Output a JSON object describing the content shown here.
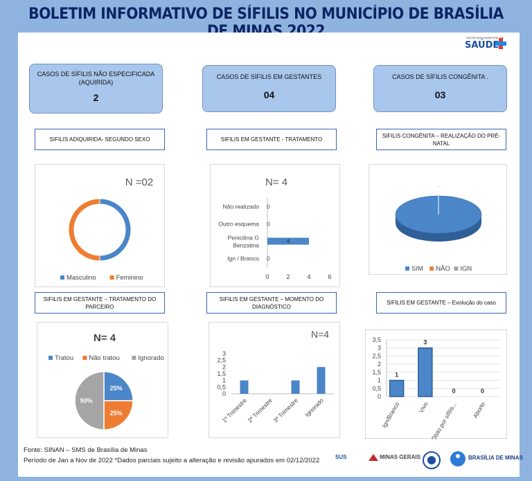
{
  "header": {
    "title": "BOLETIM INFORMATIVO DE SÍFILIS NO MUNICÍPIO DE BRASÍLIA DE MINAS 2022"
  },
  "logo": {
    "small": "SECRETARIA MUNICIPAL DE",
    "main": "SAÚDE"
  },
  "kpis": [
    {
      "label": "CASOS DE SÍFILIS NÃO ESPECIFICADA (AQUIRIDA)",
      "value": "2"
    },
    {
      "label": "CASOS DE SÍFILIS EM GESTANTES",
      "value": "04"
    },
    {
      "label": "CASOS DE SÍFILIS CONGÊNITA   .",
      "value": "03"
    }
  ],
  "sections": [
    "SIFILIS ADIQUIRIDA- SEGUNDO SEXO",
    "SIFILIS EM GESTANTE - TRATAMENTO",
    "SIFILIS CONGÊNITA – REALIZAÇÃO DO PRÉ-NATAL",
    "SIFILIS EM GESTANTE – TRATAMENTO DO PARCEIRO",
    "SIFILIS EM GESTANTE – MOMENTO DO DIAGNÓSTICO",
    "SIFILIS EM GESTANTE – Evolução do caso"
  ],
  "chart_data": [
    {
      "type": "pie",
      "subtype": "donut",
      "annotation": "N =02",
      "categories": [
        "Masculino",
        "Feminino"
      ],
      "values": [
        1,
        1
      ],
      "colors": [
        "#4a86c8",
        "#ee7d31"
      ],
      "legend": "bottom"
    },
    {
      "type": "bar",
      "orientation": "horizontal",
      "annotation": "N= 4",
      "categories": [
        "Não realizado",
        "Outro esquema",
        "Penicilina G Benzatina",
        "Ign / Branco"
      ],
      "values": [
        0,
        0,
        4,
        0
      ],
      "xlim": [
        0,
        6
      ],
      "xticks": [
        "0",
        "2",
        "4",
        "6"
      ],
      "colors": [
        "#4a86c8"
      ]
    },
    {
      "type": "pie",
      "subtype": "3d",
      "annotation": ".",
      "categories": [
        "SIM",
        "NÃO",
        "IGN"
      ],
      "values": [
        3,
        0,
        0
      ],
      "colors": [
        "#4a86c8",
        "#ee7d31",
        "#a5a5a5"
      ],
      "legend": "bottom"
    },
    {
      "type": "pie",
      "annotation": "N= 4",
      "categories": [
        "Tratou",
        "Não tratou",
        "Ignorado"
      ],
      "values": [
        25,
        25,
        50
      ],
      "labels": [
        "25%",
        "25%",
        "50%"
      ],
      "colors": [
        "#4a86c8",
        "#ee7d31",
        "#a5a5a5"
      ],
      "legend": "top"
    },
    {
      "type": "bar",
      "annotation": "N=4",
      "categories": [
        "1º Trimestre",
        "2º Trimestre",
        "3º Trimestre",
        "Ignorado"
      ],
      "values": [
        1,
        0,
        1,
        2
      ],
      "ylim": [
        0,
        3
      ],
      "yticks": [
        "0",
        "0,5",
        "1",
        "1,5",
        "2",
        "2,5",
        "3"
      ],
      "colors": [
        "#4a86c8"
      ]
    },
    {
      "type": "bar",
      "categories": [
        "Ign/Branco",
        "Vivo",
        "Óbito por sífilis...",
        "Aborto"
      ],
      "values": [
        1,
        3,
        0,
        0
      ],
      "labels": [
        "1",
        "3",
        "0",
        "0"
      ],
      "ylim": [
        0,
        3.5
      ],
      "yticks": [
        "0",
        "0,5",
        "1",
        "1,5",
        "2",
        "2,5",
        "3",
        "3,5"
      ],
      "colors": [
        "#4a86c8"
      ]
    }
  ],
  "footer": {
    "line1": "Fonte: SINAN – SMS de Brasília de Minas",
    "line2": "Período de Jan a Nov de 2022 *Dados parciais sujeito a alteração e revisão apurados em 02/12/2022",
    "logos": [
      "SUS",
      "MINAS GERAIS",
      "BRASÍLIA DE MINAS"
    ]
  }
}
